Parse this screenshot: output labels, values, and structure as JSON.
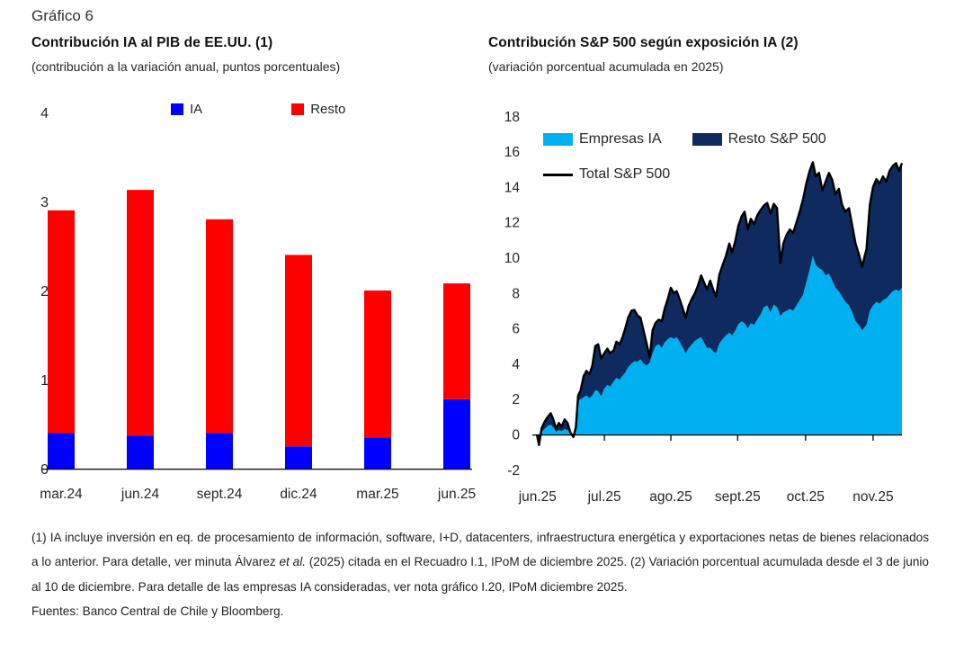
{
  "page": {
    "figure_label": "Gráfico 6"
  },
  "colors": {
    "ia_blue": "#0000ff",
    "resto_red": "#ff0000",
    "empresas_ia_lightblue": "#00b0f0",
    "resto_sp500_navy": "#0e2a5e",
    "total_line_black": "#000000",
    "axis_text": "#262626"
  },
  "charts": {
    "left": {
      "title": "Contribución IA al PIB de EE.UU. (1)",
      "subtitle": "(contribución a la variación anual, puntos porcentuales)",
      "legend": [
        {
          "label": "IA",
          "color": "#0000ff"
        },
        {
          "label": "Resto",
          "color": "#ff0000"
        }
      ]
    },
    "right": {
      "title": "Contribución S&P 500 según exposición IA (2)",
      "subtitle": "(variación porcentual acumulada en 2025)",
      "legend": [
        {
          "label": "Empresas IA",
          "color": "#00b0f0"
        },
        {
          "label": "Resto S&P 500",
          "color": "#0e2a5e"
        },
        {
          "label": "Total S&P 500",
          "color": "#000000"
        }
      ]
    }
  },
  "chart_data": [
    {
      "type": "bar",
      "stacked": true,
      "title": "Contribución IA al PIB de EE.UU. (1)",
      "subtitle": "(contribución a la variación anual, puntos porcentuales)",
      "categories": [
        "mar.24",
        "jun.24",
        "sept.24",
        "dic.24",
        "mar.25",
        "jun.25"
      ],
      "series": [
        {
          "name": "IA",
          "color": "#0000ff",
          "values": [
            0.4,
            0.37,
            0.4,
            0.25,
            0.35,
            0.78
          ]
        },
        {
          "name": "Resto",
          "color": "#ff0000",
          "values": [
            2.5,
            2.76,
            2.4,
            2.15,
            1.65,
            1.3
          ]
        }
      ],
      "totals": [
        2.9,
        3.13,
        2.8,
        2.4,
        2.0,
        2.08
      ],
      "ylim": [
        0,
        4
      ],
      "yticks": [
        0,
        1,
        2,
        3,
        4
      ],
      "grid": false,
      "legend_position": "top-inside"
    },
    {
      "type": "area",
      "stacked": true,
      "title": "Contribución S&P 500 según exposición IA (2)",
      "subtitle": "(variación porcentual acumulada en 2025)",
      "x_axis": {
        "labels": [
          "jun.25",
          "jul.25",
          "ago.25",
          "sept.25",
          "oct.25",
          "nov.25"
        ],
        "label_positions_pct": [
          0.2,
          18.5,
          36.7,
          55.0,
          73.6,
          92.1
        ],
        "tick_positions_pct": [
          18.5,
          36.7,
          55.0,
          73.6,
          92.1
        ],
        "range_note": "3 de junio al 10 de diciembre de 2025"
      },
      "ylim": [
        -2,
        18
      ],
      "yticks": [
        -2,
        0,
        2,
        4,
        6,
        8,
        10,
        12,
        14,
        16,
        18
      ],
      "grid": false,
      "legend_position": "top-left-inside",
      "series_legend": [
        {
          "name": "Empresas IA",
          "color": "#00b0f0",
          "role": "lower area (0 to empresas_ia)"
        },
        {
          "name": "Resto S&P 500",
          "color": "#0e2a5e",
          "role": "upper band (empresas_ia to total_sp500)"
        },
        {
          "name": "Total S&P 500",
          "color": "#000000",
          "role": "line at total_sp500"
        }
      ],
      "columns": [
        "x_pct",
        "empresas_ia",
        "total_sp500"
      ],
      "points": [
        [
          0.0,
          0.0,
          0.0
        ],
        [
          0.6,
          0.0,
          -0.6
        ],
        [
          1.3,
          0.15,
          0.35
        ],
        [
          2.1,
          0.3,
          0.7
        ],
        [
          3.0,
          0.5,
          1.0
        ],
        [
          3.8,
          0.55,
          1.2
        ],
        [
          4.5,
          0.4,
          0.85
        ],
        [
          5.3,
          0.15,
          0.3
        ],
        [
          6.0,
          0.25,
          0.65
        ],
        [
          6.8,
          0.2,
          0.45
        ],
        [
          7.6,
          0.3,
          0.85
        ],
        [
          8.4,
          0.25,
          0.65
        ],
        [
          9.2,
          0.05,
          0.1
        ],
        [
          10.0,
          0.0,
          -0.15
        ],
        [
          10.7,
          0.2,
          0.4
        ],
        [
          11.3,
          1.9,
          2.2
        ],
        [
          12.0,
          2.0,
          2.5
        ],
        [
          12.8,
          2.1,
          3.3
        ],
        [
          13.6,
          2.2,
          3.6
        ],
        [
          14.4,
          2.05,
          3.4
        ],
        [
          15.2,
          2.2,
          3.9
        ],
        [
          16.0,
          2.5,
          5.0
        ],
        [
          16.8,
          2.45,
          5.1
        ],
        [
          17.6,
          2.15,
          4.3
        ],
        [
          18.5,
          2.6,
          4.6
        ],
        [
          19.3,
          2.8,
          4.85
        ],
        [
          20.1,
          2.7,
          4.6
        ],
        [
          21.0,
          3.0,
          4.75
        ],
        [
          21.8,
          3.2,
          5.25
        ],
        [
          22.6,
          3.1,
          5.1
        ],
        [
          23.4,
          3.3,
          5.45
        ],
        [
          24.2,
          3.5,
          6.0
        ],
        [
          25.0,
          3.8,
          6.6
        ],
        [
          25.9,
          4.0,
          7.0
        ],
        [
          26.7,
          4.15,
          7.05
        ],
        [
          27.5,
          4.1,
          6.75
        ],
        [
          28.4,
          4.25,
          6.6
        ],
        [
          29.2,
          4.0,
          5.9
        ],
        [
          30.0,
          3.9,
          5.2
        ],
        [
          30.9,
          4.05,
          4.35
        ],
        [
          31.7,
          4.6,
          5.9
        ],
        [
          32.5,
          5.0,
          6.3
        ],
        [
          33.4,
          5.1,
          6.5
        ],
        [
          34.2,
          4.9,
          6.4
        ],
        [
          35.0,
          5.2,
          7.1
        ],
        [
          35.9,
          5.4,
          7.7
        ],
        [
          36.7,
          5.5,
          8.3
        ],
        [
          37.5,
          5.4,
          8.0
        ],
        [
          38.3,
          5.5,
          8.1
        ],
        [
          39.2,
          5.2,
          7.6
        ],
        [
          40.0,
          4.9,
          7.1
        ],
        [
          40.8,
          4.6,
          6.6
        ],
        [
          41.6,
          4.9,
          7.3
        ],
        [
          42.5,
          5.1,
          7.7
        ],
        [
          43.3,
          5.3,
          8.0
        ],
        [
          44.1,
          5.4,
          8.4
        ],
        [
          45.0,
          5.5,
          9.0
        ],
        [
          45.8,
          5.2,
          8.6
        ],
        [
          46.6,
          4.9,
          8.2
        ],
        [
          47.5,
          4.9,
          8.7
        ],
        [
          48.3,
          4.7,
          8.2
        ],
        [
          49.1,
          4.6,
          7.8
        ],
        [
          50.0,
          5.15,
          9.05
        ],
        [
          50.9,
          5.4,
          9.6
        ],
        [
          51.8,
          5.6,
          10.1
        ],
        [
          52.7,
          5.75,
          10.8
        ],
        [
          53.5,
          5.6,
          10.3
        ],
        [
          54.4,
          5.9,
          11.0
        ],
        [
          55.2,
          6.25,
          11.8
        ],
        [
          56.1,
          6.4,
          12.35
        ],
        [
          56.9,
          6.3,
          12.6
        ],
        [
          57.8,
          6.0,
          11.6
        ],
        [
          58.6,
          6.3,
          12.2
        ],
        [
          59.5,
          6.2,
          11.9
        ],
        [
          60.4,
          6.5,
          12.4
        ],
        [
          61.3,
          6.8,
          12.7
        ],
        [
          62.2,
          7.2,
          12.95
        ],
        [
          63.1,
          7.3,
          13.1
        ],
        [
          64.0,
          6.9,
          12.5
        ],
        [
          64.9,
          7.35,
          13.05
        ],
        [
          65.8,
          7.2,
          12.8
        ],
        [
          66.7,
          6.7,
          9.7
        ],
        [
          67.5,
          6.9,
          10.8
        ],
        [
          68.4,
          7.0,
          11.3
        ],
        [
          69.3,
          7.1,
          11.6
        ],
        [
          70.2,
          7.0,
          11.4
        ],
        [
          71.1,
          7.3,
          12.0
        ],
        [
          72.0,
          7.6,
          12.6
        ],
        [
          72.9,
          7.9,
          13.3
        ],
        [
          73.8,
          8.6,
          14.2
        ],
        [
          74.7,
          9.3,
          14.9
        ],
        [
          75.6,
          10.1,
          15.4
        ],
        [
          76.4,
          9.6,
          14.6
        ],
        [
          77.3,
          9.4,
          14.8
        ],
        [
          78.2,
          9.3,
          13.8
        ],
        [
          79.1,
          9.0,
          14.3
        ],
        [
          80.0,
          9.1,
          14.8
        ],
        [
          80.9,
          8.7,
          14.4
        ],
        [
          81.8,
          8.3,
          13.6
        ],
        [
          82.7,
          8.1,
          13.9
        ],
        [
          83.6,
          7.8,
          13.0
        ],
        [
          84.5,
          7.5,
          12.6
        ],
        [
          85.5,
          7.3,
          12.8
        ],
        [
          86.4,
          6.9,
          11.8
        ],
        [
          87.3,
          6.4,
          10.8
        ],
        [
          88.2,
          6.2,
          10.2
        ],
        [
          89.1,
          5.9,
          9.5
        ],
        [
          90.3,
          6.2,
          10.5
        ],
        [
          91.2,
          7.0,
          13.0
        ],
        [
          92.1,
          7.3,
          14.0
        ],
        [
          93.0,
          7.5,
          14.45
        ],
        [
          93.9,
          7.4,
          14.2
        ],
        [
          94.8,
          7.6,
          14.6
        ],
        [
          95.7,
          7.7,
          14.3
        ],
        [
          96.6,
          7.9,
          14.9
        ],
        [
          97.5,
          8.1,
          15.2
        ],
        [
          98.4,
          8.2,
          15.35
        ],
        [
          99.2,
          8.1,
          14.9
        ],
        [
          100.0,
          8.3,
          15.35
        ]
      ]
    }
  ],
  "footnotes": {
    "note_part1": "(1) IA incluye inversión en eq. de procesamiento de información, software, I+D, datacenters, infraestructura energética y exportaciones netas de bienes relacionados a lo anterior. Para detalle, ver minuta Álvarez ",
    "note_italic": "et al.",
    "note_part2": "  (2025) citada en el Recuadro I.1, IPoM de diciembre 2025. (2) Variación porcentual acumulada desde el 3 de junio al 10 de diciembre. Para detalle de las empresas IA consideradas, ver nota gráfico I.20, IPoM diciembre 2025.",
    "sources": "Fuentes: Banco Central de Chile y Bloomberg."
  }
}
